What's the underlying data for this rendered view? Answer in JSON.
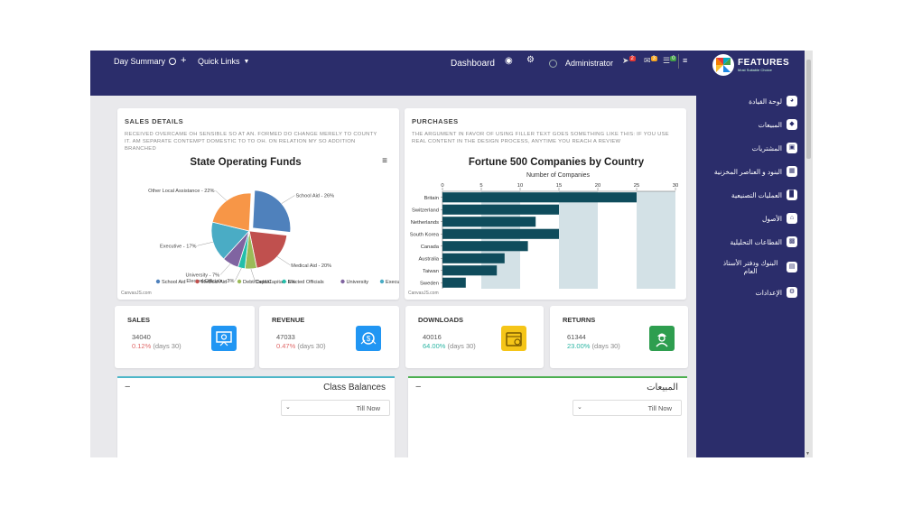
{
  "topbar": {
    "day_summary": "Day Summary",
    "plus": "+",
    "quick_links": "Quick Links",
    "dashboard": "Dashboard",
    "user": "Administrator",
    "badges": [
      "2",
      "3",
      "0"
    ]
  },
  "brand": {
    "name": "FEATURES",
    "tagline": "Most Suitable Choice"
  },
  "sidebar": {
    "items": [
      {
        "label": "لوحة القيادة",
        "icon": "dashboard-icon"
      },
      {
        "label": "المبيعات",
        "icon": "tag-icon"
      },
      {
        "label": "المشتريات",
        "icon": "cart-icon"
      },
      {
        "label": "البنود و العناصر المخزنية",
        "icon": "boxes-icon"
      },
      {
        "label": "العمليات التصنيعية",
        "icon": "factory-icon"
      },
      {
        "label": "الأصول",
        "icon": "home-icon"
      },
      {
        "label": "القطاعات التحليلية",
        "icon": "building-icon"
      },
      {
        "label": "البنوك ودفتر الأستاذ العام",
        "icon": "ledger-icon"
      },
      {
        "label": "الإعدادات",
        "icon": "settings-icon"
      }
    ]
  },
  "sales_details": {
    "title": "SALES DETAILS",
    "desc": "RECEIVED OVERCAME OH SENSIBLE SO AT AN. FORMED DO CHANGE MERELY TO COUNTY IT. AM SEPARATE CONTEMPT DOMESTIC TO TO OH. ON RELATION MY SO ADDITION BRANCHED",
    "credit": "CanvasJS.com"
  },
  "purchases": {
    "title": "PURCHASES",
    "desc": "THE ARGUMENT IN FAVOR OF USING FILLER TEXT GOES SOMETHING LIKE THIS: IF YOU USE REAL CONTENT IN THE DESIGN PROCESS, ANYTIME YOU REACH A REVIEW",
    "credit": "CanvasJS.com"
  },
  "chart_data": [
    {
      "type": "pie",
      "title": "State Operating Funds",
      "slices": [
        {
          "label": "School Aid",
          "value": 26,
          "color": "#4f81bc",
          "display": "School Aid - 26%"
        },
        {
          "label": "Medical Aid",
          "value": 20,
          "color": "#c0504e",
          "display": "Medical Aid - 20%"
        },
        {
          "label": "Debt/Capital",
          "value": 5,
          "color": "#9bbb58",
          "display": "Debt/Capital - 5%"
        },
        {
          "label": "Elected Officials",
          "value": 3,
          "color": "#23bfaa",
          "display": "Elected Officials - 3%"
        },
        {
          "label": "University",
          "value": 7,
          "color": "#8064a1",
          "display": "University - 7%"
        },
        {
          "label": "Executive",
          "value": 17,
          "color": "#4aacc5",
          "display": "Executive - 17%"
        },
        {
          "label": "Other Local Assistance",
          "value": 22,
          "color": "#f79647",
          "display": "Other Local Assistance - 22%"
        }
      ],
      "legend": [
        "School Aid",
        "Medical Aid",
        "Debt/Capital",
        "Elected Officials",
        "University",
        "Executive"
      ],
      "legend_placement": "bottom"
    },
    {
      "type": "bar",
      "orientation": "horizontal",
      "title": "Fortune 500 Companies by Country",
      "xlabel": "Number of Companies",
      "xlim": [
        0,
        30
      ],
      "xticks": [
        0,
        5,
        10,
        15,
        20,
        25,
        30
      ],
      "categories": [
        "Britain",
        "Switzerland",
        "Netherlands",
        "South Korea",
        "Canada",
        "Australia",
        "Taiwan",
        "Sweden"
      ],
      "values": [
        25,
        15,
        12,
        15,
        11,
        8,
        7,
        3
      ],
      "bar_color": "#0f4c5c",
      "band_color": "#d3e1e6"
    }
  ],
  "kpis": [
    {
      "label": "SALES",
      "value": "34040",
      "pct": "0.12%",
      "days": "(days 30)",
      "pct_color": "#e06a6a",
      "icon": "presentation-icon",
      "icon_bg": "#2196f3"
    },
    {
      "label": "REVENUE",
      "value": "47033",
      "pct": "0.47%",
      "days": "(days 30)",
      "pct_color": "#e06a6a",
      "icon": "money-bag-icon",
      "icon_bg": "#2196f3"
    },
    {
      "label": "DOWNLOADS",
      "value": "40016",
      "pct": "64.00%",
      "days": "(days 30)",
      "pct_color": "#2bb5a3",
      "icon": "calendar-icon",
      "icon_bg": "#f5c518"
    },
    {
      "label": "RETURNS",
      "value": "61344",
      "pct": "23.00%",
      "days": "(days 30)",
      "pct_color": "#2bb5a3",
      "icon": "worker-icon",
      "icon_bg": "#2e9e4f"
    }
  ],
  "panels": [
    {
      "title": "Class Balances",
      "collapse": "−",
      "select": "Till Now",
      "accent": "#4db6c8"
    },
    {
      "title": "المبيعات",
      "collapse": "−",
      "select": "Till Now",
      "accent": "#4caf50"
    }
  ]
}
